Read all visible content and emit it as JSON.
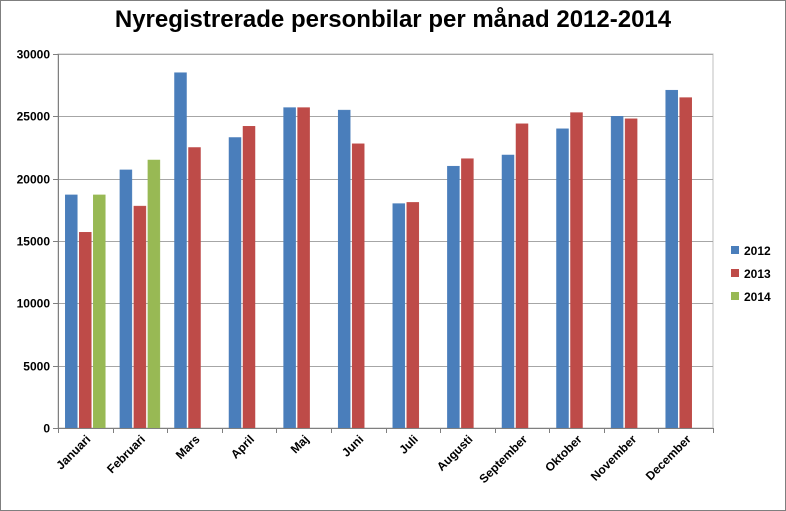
{
  "chart_data": {
    "type": "bar",
    "title": "Nyregistrerade personbilar per månad 2012-2014",
    "xlabel": "",
    "ylabel": "",
    "categories": [
      "Januari",
      "Februari",
      "Mars",
      "April",
      "Maj",
      "Juni",
      "Juli",
      "Augusti",
      "September",
      "Oktober",
      "November",
      "December"
    ],
    "series": [
      {
        "name": "2012",
        "color": "#4a7ebb",
        "values": [
          18700,
          20700,
          28500,
          23300,
          25700,
          25500,
          18000,
          21000,
          21900,
          24000,
          25000,
          27100
        ]
      },
      {
        "name": "2013",
        "color": "#be4b48",
        "values": [
          15700,
          17800,
          22500,
          24200,
          25700,
          22800,
          18100,
          21600,
          24400,
          25300,
          24800,
          26500
        ]
      },
      {
        "name": "2014",
        "color": "#98b954",
        "values": [
          18700,
          21500,
          null,
          null,
          null,
          null,
          null,
          null,
          null,
          null,
          null,
          null
        ]
      }
    ],
    "ylim": [
      0,
      30000
    ],
    "yticks": [
      0,
      5000,
      10000,
      15000,
      20000,
      25000,
      30000
    ],
    "grid": true,
    "legend": "right"
  }
}
